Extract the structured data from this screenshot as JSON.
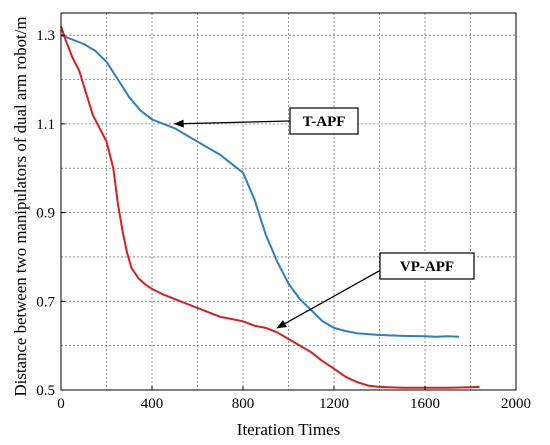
{
  "chart_data": {
    "type": "line",
    "xlabel": "Iteration Times",
    "ylabel": "Distance between two manipulators of dual arm robot/m",
    "xlim": [
      0,
      2000
    ],
    "ylim": [
      0.5,
      1.35
    ],
    "xticks": [
      0,
      400,
      800,
      1200,
      1600,
      2000
    ],
    "yticks": [
      0.5,
      0.7,
      0.9,
      1.1,
      1.3
    ],
    "grid": true,
    "series": [
      {
        "name": "T-APF",
        "color": "#2e7fbf",
        "points": [
          [
            0,
            1.3
          ],
          [
            50,
            1.29
          ],
          [
            100,
            1.28
          ],
          [
            150,
            1.265
          ],
          [
            200,
            1.24
          ],
          [
            250,
            1.2
          ],
          [
            300,
            1.16
          ],
          [
            350,
            1.13
          ],
          [
            400,
            1.11
          ],
          [
            450,
            1.1
          ],
          [
            500,
            1.09
          ],
          [
            550,
            1.075
          ],
          [
            600,
            1.06
          ],
          [
            650,
            1.045
          ],
          [
            700,
            1.03
          ],
          [
            750,
            1.01
          ],
          [
            800,
            0.99
          ],
          [
            850,
            0.93
          ],
          [
            900,
            0.85
          ],
          [
            950,
            0.79
          ],
          [
            1000,
            0.74
          ],
          [
            1050,
            0.705
          ],
          [
            1100,
            0.68
          ],
          [
            1150,
            0.655
          ],
          [
            1200,
            0.64
          ],
          [
            1250,
            0.633
          ],
          [
            1300,
            0.628
          ],
          [
            1350,
            0.626
          ],
          [
            1400,
            0.624
          ],
          [
            1500,
            0.622
          ],
          [
            1600,
            0.621
          ],
          [
            1650,
            0.62
          ],
          [
            1700,
            0.621
          ],
          [
            1750,
            0.62
          ]
        ]
      },
      {
        "name": "VP-APF",
        "color": "#d62020",
        "points": [
          [
            0,
            1.32
          ],
          [
            20,
            1.29
          ],
          [
            50,
            1.25
          ],
          [
            80,
            1.22
          ],
          [
            110,
            1.17
          ],
          [
            140,
            1.12
          ],
          [
            170,
            1.09
          ],
          [
            200,
            1.06
          ],
          [
            230,
            1.0
          ],
          [
            250,
            0.92
          ],
          [
            270,
            0.86
          ],
          [
            290,
            0.81
          ],
          [
            310,
            0.775
          ],
          [
            340,
            0.752
          ],
          [
            370,
            0.738
          ],
          [
            400,
            0.728
          ],
          [
            450,
            0.715
          ],
          [
            500,
            0.705
          ],
          [
            550,
            0.695
          ],
          [
            600,
            0.685
          ],
          [
            650,
            0.675
          ],
          [
            700,
            0.665
          ],
          [
            750,
            0.66
          ],
          [
            800,
            0.655
          ],
          [
            850,
            0.645
          ],
          [
            900,
            0.64
          ],
          [
            950,
            0.63
          ],
          [
            1000,
            0.615
          ],
          [
            1050,
            0.6
          ],
          [
            1100,
            0.585
          ],
          [
            1150,
            0.565
          ],
          [
            1200,
            0.548
          ],
          [
            1250,
            0.53
          ],
          [
            1300,
            0.518
          ],
          [
            1350,
            0.51
          ],
          [
            1400,
            0.507
          ],
          [
            1500,
            0.505
          ],
          [
            1600,
            0.505
          ],
          [
            1700,
            0.505
          ],
          [
            1800,
            0.506
          ],
          [
            1840,
            0.507
          ]
        ]
      }
    ],
    "annotations": [
      {
        "text": "T-APF",
        "target": [
          500,
          1.1
        ]
      },
      {
        "text": "VP-APF",
        "target": [
          950,
          0.64
        ]
      }
    ]
  }
}
